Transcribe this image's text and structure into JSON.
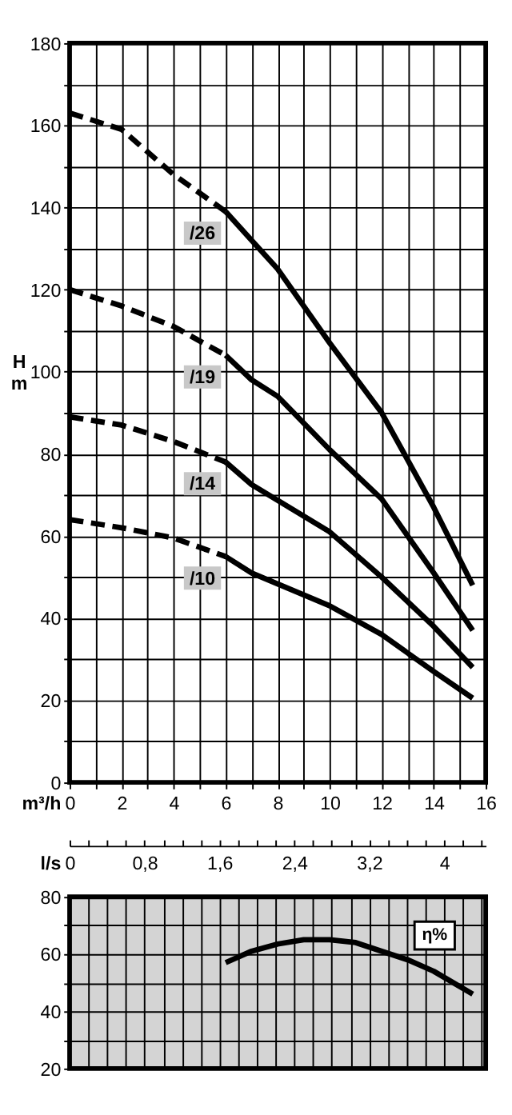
{
  "chart_data": [
    {
      "type": "line",
      "xlabel": "m³/h",
      "ylabel": "H m",
      "xlim": [
        0,
        16
      ],
      "xticks": [
        0,
        {
          "value": 1,
          "label": null
        },
        2,
        {
          "value": 3,
          "label": null
        },
        4,
        {
          "value": 5,
          "label": null
        },
        6,
        {
          "value": 7,
          "label": null
        },
        8,
        {
          "value": 9,
          "label": null
        },
        10,
        {
          "value": 11,
          "label": null
        },
        12,
        {
          "value": 13,
          "label": null
        },
        14,
        {
          "value": 15,
          "label": null
        },
        16
      ],
      "ylim": [
        0,
        180
      ],
      "yticks": [
        0,
        {
          "value": 10,
          "label": null
        },
        20,
        {
          "value": 30,
          "label": null
        },
        40,
        {
          "value": 50,
          "label": null
        },
        60,
        {
          "value": 70,
          "label": null
        },
        80,
        {
          "value": 90,
          "label": null
        },
        100,
        {
          "value": 110,
          "label": null
        },
        120,
        {
          "value": 130,
          "label": null
        },
        140,
        {
          "value": 150,
          "label": null
        },
        160,
        {
          "value": 170,
          "label": null
        },
        180
      ],
      "grid": true,
      "series": [
        {
          "x": [
            0,
            2,
            4,
            6
          ],
          "values": [
            163,
            159,
            148,
            139
          ],
          "color": "#000000",
          "line_style": "dashed"
        },
        {
          "name": "/26",
          "x": [
            6,
            7,
            8,
            10,
            12,
            14,
            15.5
          ],
          "values": [
            139,
            132,
            125,
            107,
            90,
            67,
            48
          ],
          "color": "#000000",
          "line_style": "solid"
        },
        {
          "x": [
            0,
            2,
            4,
            6
          ],
          "values": [
            120,
            116,
            111,
            104
          ],
          "color": "#000000",
          "line_style": "dashed"
        },
        {
          "name": "/19",
          "x": [
            6,
            7,
            8,
            10,
            12,
            14,
            15.5
          ],
          "values": [
            104,
            98,
            94,
            81,
            69,
            51,
            37
          ],
          "color": "#000000",
          "line_style": "solid"
        },
        {
          "x": [
            0,
            2,
            4,
            6
          ],
          "values": [
            89,
            87,
            83,
            78
          ],
          "color": "#000000",
          "line_style": "dashed"
        },
        {
          "name": "/14",
          "x": [
            6,
            7,
            10,
            12,
            14,
            15.5
          ],
          "values": [
            78,
            72.5,
            61,
            50,
            38,
            28
          ],
          "color": "#000000",
          "line_style": "solid"
        },
        {
          "x": [
            0,
            2,
            4,
            6
          ],
          "values": [
            64,
            62,
            59.5,
            55
          ],
          "color": "#000000",
          "line_style": "dashed"
        },
        {
          "name": "/10",
          "x": [
            6,
            7,
            10,
            12,
            14,
            15.5
          ],
          "values": [
            55,
            51,
            43,
            36,
            27,
            20.5
          ],
          "color": "#000000",
          "line_style": "solid"
        }
      ]
    },
    {
      "type": "line",
      "xlabel": "l/s",
      "xlim": [
        0,
        4.4444
      ],
      "xticks": [
        0,
        {
          "value": 0.2,
          "label": null
        },
        {
          "value": 0.4,
          "label": null
        },
        {
          "value": 0.6,
          "label": null
        },
        {
          "value": 0.8,
          "label": "0,8"
        },
        {
          "value": 1.0,
          "label": null
        },
        {
          "value": 1.2,
          "label": null
        },
        {
          "value": 1.4,
          "label": null
        },
        {
          "value": 1.6,
          "label": "1,6"
        },
        {
          "value": 1.8,
          "label": null
        },
        {
          "value": 2.0,
          "label": null
        },
        {
          "value": 2.2,
          "label": null
        },
        {
          "value": 2.4,
          "label": "2,4"
        },
        {
          "value": 2.6,
          "label": null
        },
        {
          "value": 2.8,
          "label": null
        },
        {
          "value": 3.0,
          "label": null
        },
        {
          "value": 3.2,
          "label": "3,2"
        },
        {
          "value": 3.4,
          "label": null
        },
        {
          "value": 3.6,
          "label": null
        },
        {
          "value": 3.8,
          "label": null
        },
        4,
        {
          "value": 4.2,
          "label": null
        },
        {
          "value": 4.4,
          "label": null
        }
      ],
      "ylim": [
        20,
        80
      ],
      "yticks": [
        20,
        {
          "value": 30,
          "label": null
        },
        40,
        {
          "value": 50,
          "label": null
        },
        60,
        {
          "value": 70,
          "label": null
        },
        80
      ],
      "grid": true,
      "annotations": [
        "η%"
      ],
      "series": [
        {
          "x": [
            1.667,
            1.944,
            2.222,
            2.5,
            2.778,
            3.056,
            3.333,
            3.611,
            3.889,
            4.306
          ],
          "values": [
            57,
            61,
            63.5,
            65,
            65,
            64,
            61,
            58,
            54,
            46
          ],
          "color": "#000000",
          "line_style": "solid"
        }
      ]
    }
  ]
}
